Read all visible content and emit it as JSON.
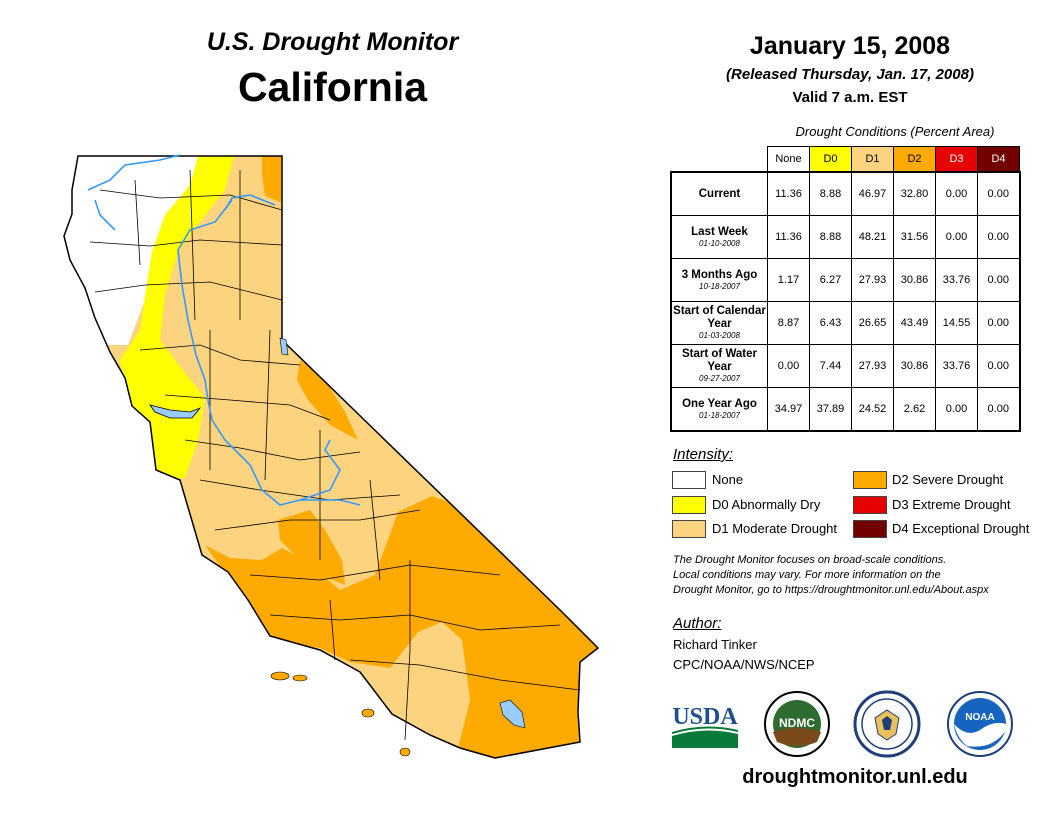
{
  "header": {
    "title": "U.S. Drought Monitor",
    "state": "California",
    "date": "January 15, 2008",
    "released": "(Released Thursday, Jan. 17, 2008)",
    "valid": "Valid 7 a.m. EST"
  },
  "table": {
    "title": "Drought Conditions (Percent Area)",
    "columns": [
      "None",
      "D0",
      "D1",
      "D2",
      "D3",
      "D4"
    ],
    "rows": [
      {
        "label": "Current",
        "date": "",
        "values": [
          "11.36",
          "8.88",
          "46.97",
          "32.80",
          "0.00",
          "0.00"
        ]
      },
      {
        "label": "Last Week",
        "date": "01-10-2008",
        "values": [
          "11.36",
          "8.88",
          "48.21",
          "31.56",
          "0.00",
          "0.00"
        ]
      },
      {
        "label": "3 Months Ago",
        "date": "10-18-2007",
        "values": [
          "1.17",
          "6.27",
          "27.93",
          "30.86",
          "33.76",
          "0.00"
        ]
      },
      {
        "label": "Start of Calendar Year",
        "date": "01-03-2008",
        "values": [
          "8.87",
          "6.43",
          "26.65",
          "43.49",
          "14.55",
          "0.00"
        ]
      },
      {
        "label": "Start of Water Year",
        "date": "09-27-2007",
        "values": [
          "0.00",
          "7.44",
          "27.93",
          "30.86",
          "33.76",
          "0.00"
        ]
      },
      {
        "label": "One Year Ago",
        "date": "01-18-2007",
        "values": [
          "34.97",
          "37.89",
          "24.52",
          "2.62",
          "0.00",
          "0.00"
        ]
      }
    ]
  },
  "colors": {
    "none": "#ffffff",
    "d0": "#ffff00",
    "d1": "#fcd37f",
    "d2": "#ffaa00",
    "d3": "#e60000",
    "d4": "#730000",
    "water": "#99ccff",
    "river": "#3399ff"
  },
  "legend": {
    "title": "Intensity:",
    "items": [
      {
        "key": "none",
        "label": "None"
      },
      {
        "key": "d0",
        "label": "D0 Abnormally Dry"
      },
      {
        "key": "d1",
        "label": "D1 Moderate Drought"
      },
      {
        "key": "d2",
        "label": "D2 Severe Drought"
      },
      {
        "key": "d3",
        "label": "D3 Extreme Drought"
      },
      {
        "key": "d4",
        "label": "D4 Exceptional Drought"
      }
    ]
  },
  "note": {
    "line1": "The Drought Monitor focuses on broad-scale conditions.",
    "line2": "Local conditions may vary. For more information on the",
    "line3": "Drought Monitor, go to https://droughtmonitor.unl.edu/About.aspx"
  },
  "author": {
    "title": "Author:",
    "name": "Richard Tinker",
    "org": "CPC/NOAA/NWS/NCEP"
  },
  "logos": {
    "usda": "USDA",
    "ndmc": "NDMC",
    "noaa": "NOAA"
  },
  "footer": {
    "url": "droughtmonitor.unl.edu"
  }
}
